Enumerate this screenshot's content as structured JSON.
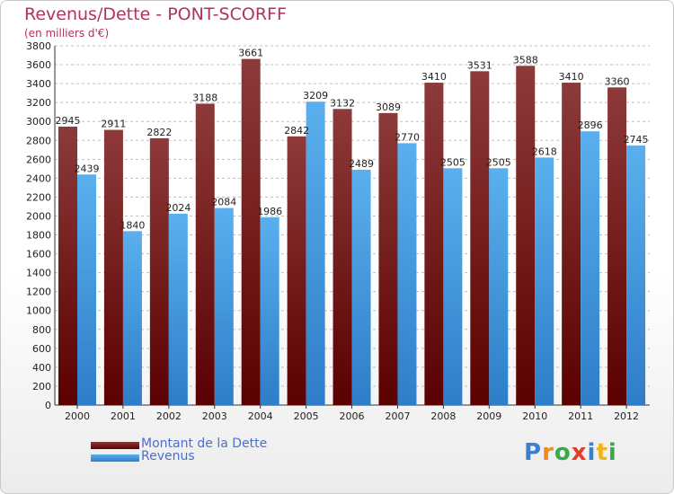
{
  "header": {
    "title": "Revenus/Dette - PONT-SCORFF",
    "subtitle": "(en milliers d'€)"
  },
  "colors": {
    "dette_dark": "#5a0000",
    "dette_light": "#8e3a3a",
    "revenus_dark": "#2e7dc8",
    "revenus_light": "#5ab0ee",
    "grid": "#bfbfbf",
    "axis_text": "#222222"
  },
  "chart_data": {
    "type": "bar",
    "title": "Revenus/Dette - PONT-SCORFF",
    "subtitle": "(en milliers d'€)",
    "categories": [
      "2000",
      "2001",
      "2002",
      "2003",
      "2004",
      "2005",
      "2006",
      "2007",
      "2008",
      "2009",
      "2010",
      "2011",
      "2012"
    ],
    "series": [
      {
        "name": "Montant de la Dette",
        "values": [
          2945,
          2911,
          2822,
          3188,
          3661,
          2842,
          3132,
          3089,
          3410,
          3531,
          3588,
          3410,
          3360
        ]
      },
      {
        "name": "Revenus",
        "values": [
          2439,
          1840,
          2024,
          2084,
          1986,
          3209,
          2489,
          2770,
          2505,
          2505,
          2618,
          2896,
          2745
        ]
      }
    ],
    "ylim": [
      0,
      3800
    ],
    "ytick_step": 200,
    "grid": true,
    "legend_position": "bottom-left"
  },
  "legend": {
    "items": [
      {
        "label": "Montant de la Dette"
      },
      {
        "label": "Revenus"
      }
    ]
  },
  "logo": {
    "letters": [
      "P",
      "r",
      "o",
      "x",
      "i",
      "t",
      "i"
    ],
    "letter_colors": [
      "#3a7fd0",
      "#f08a1c",
      "#3aa84a",
      "#e63c2a",
      "#3a7fd0",
      "#f0b41c",
      "#3aa84a"
    ]
  }
}
